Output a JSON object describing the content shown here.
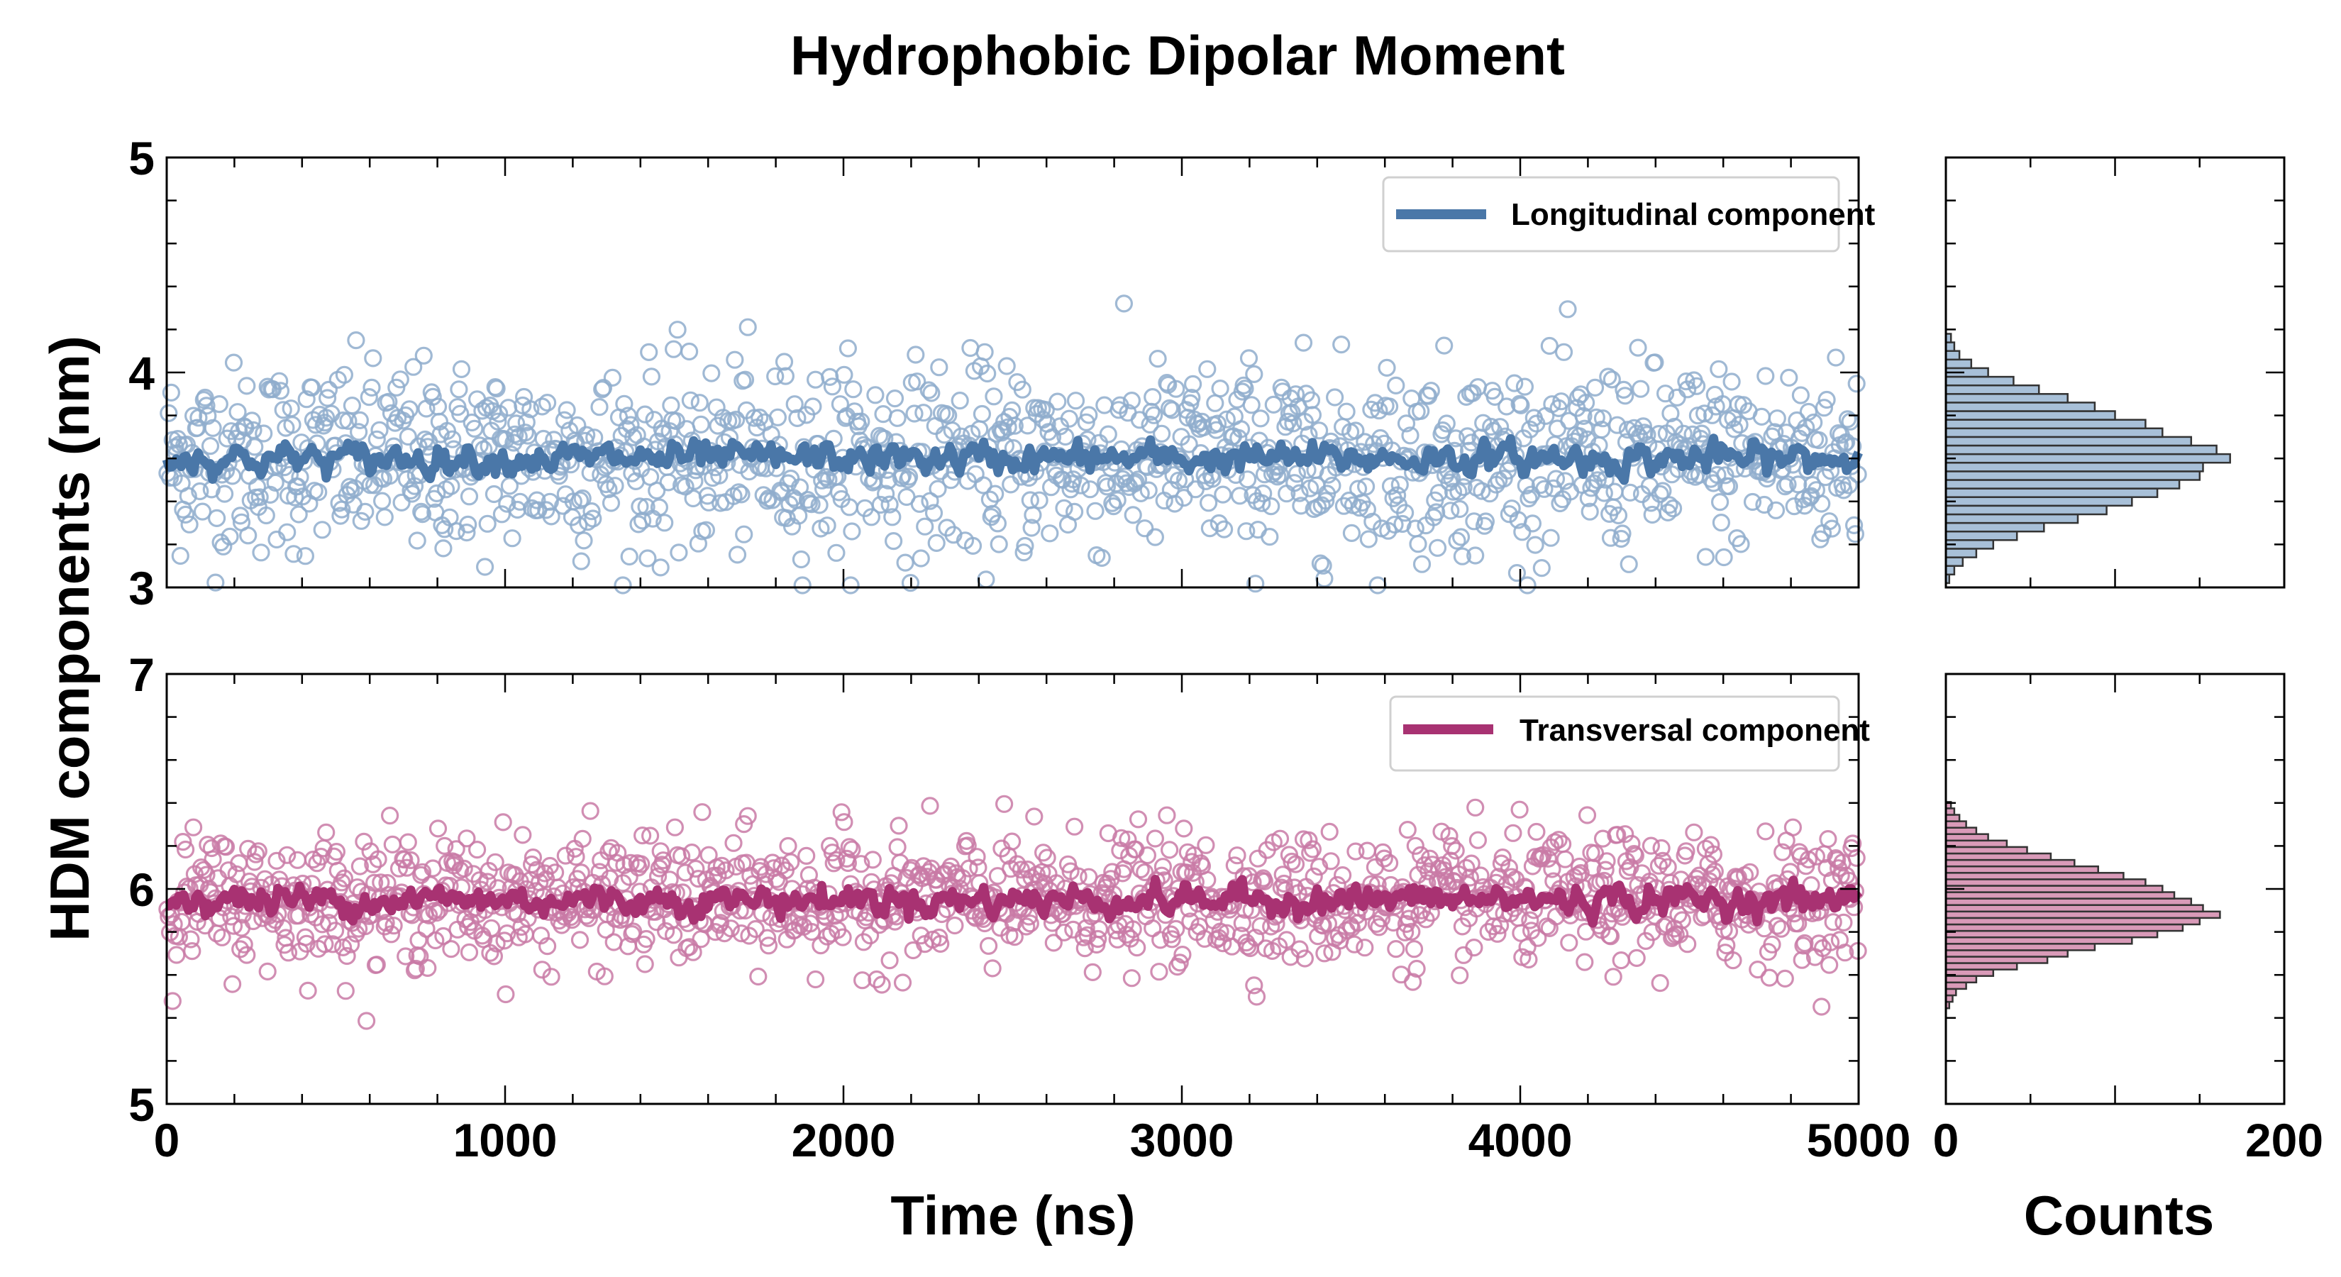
{
  "chart_data": {
    "title": "Hydrophobic Dipolar Moment",
    "ylabel": "HDM components (nm)",
    "xlabel_main": "Time (ns)",
    "xlabel_hist": "Counts",
    "colors": {
      "longitudinal": "#4a77a8",
      "longitudinal_marker": "#8fadcc",
      "longitudinal_hist": "#a8c0d8",
      "transversal": "#a83272",
      "transversal_marker": "#c97aa6",
      "transversal_hist": "#d99ab8"
    },
    "timeseries": {
      "type": "scatter+line",
      "xlim": [
        0,
        5000
      ],
      "xticks": [
        0,
        1000,
        2000,
        3000,
        4000,
        5000
      ],
      "xtick_labels": [
        "0",
        "1000",
        "2000",
        "3000",
        "4000",
        "5000"
      ],
      "panels": [
        {
          "key": "longitudinal",
          "legend": "Longitudinal component",
          "ylim": [
            3,
            5
          ],
          "yticks": [
            3,
            4,
            5
          ],
          "ytick_labels": [
            "3",
            "4",
            "5"
          ],
          "mean": 3.6,
          "scatter_spread": 0.22,
          "running_average_spread": 0.05
        },
        {
          "key": "transversal",
          "legend": "Transversal component",
          "ylim": [
            5,
            7
          ],
          "yticks": [
            5,
            6,
            7
          ],
          "ytick_labels": [
            "5",
            "6",
            "7"
          ],
          "mean": 5.95,
          "scatter_spread": 0.15,
          "running_average_spread": 0.05
        }
      ]
    },
    "histograms": {
      "type": "bar",
      "xlim": [
        0,
        200
      ],
      "xticks": [
        0,
        200
      ],
      "xtick_labels": [
        "0",
        "200"
      ],
      "panels": [
        {
          "key": "longitudinal",
          "bins": [
            3.04,
            3.08,
            3.12,
            3.16,
            3.2,
            3.24,
            3.28,
            3.32,
            3.36,
            3.4,
            3.44,
            3.48,
            3.52,
            3.56,
            3.6,
            3.64,
            3.68,
            3.72,
            3.76,
            3.8,
            3.84,
            3.88,
            3.92,
            3.96,
            4.0,
            4.04,
            4.08,
            4.12,
            4.16
          ],
          "counts": [
            2,
            5,
            10,
            18,
            28,
            42,
            58,
            78,
            95,
            110,
            125,
            138,
            150,
            152,
            168,
            160,
            145,
            128,
            118,
            100,
            88,
            72,
            55,
            40,
            25,
            15,
            8,
            5,
            3
          ]
        },
        {
          "key": "transversal",
          "bins": [
            5.46,
            5.49,
            5.52,
            5.55,
            5.58,
            5.61,
            5.64,
            5.67,
            5.7,
            5.73,
            5.76,
            5.79,
            5.82,
            5.85,
            5.88,
            5.91,
            5.94,
            5.97,
            6.0,
            6.03,
            6.06,
            6.09,
            6.12,
            6.15,
            6.18,
            6.21,
            6.24,
            6.27,
            6.3,
            6.33,
            6.36,
            6.39
          ],
          "counts": [
            2,
            4,
            6,
            12,
            18,
            28,
            42,
            60,
            72,
            88,
            110,
            125,
            140,
            150,
            162,
            152,
            145,
            135,
            128,
            118,
            105,
            90,
            76,
            62,
            48,
            36,
            25,
            18,
            12,
            8,
            5,
            3
          ]
        }
      ]
    }
  }
}
